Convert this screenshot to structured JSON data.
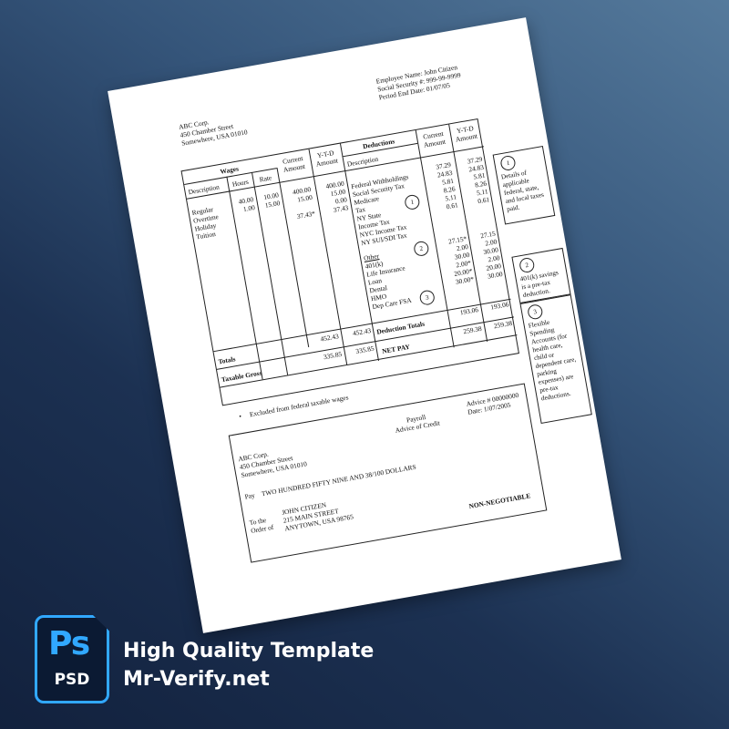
{
  "header": {
    "company": [
      "ABC Corp.",
      "450 Chamber Street",
      "Somewhere, USA 01010"
    ],
    "employee": [
      "Employee Name: John Citizen",
      "Social Security #: 999-99-9999",
      "Period End Date: 01/07/05"
    ]
  },
  "wages": {
    "title": "Wages",
    "headers": {
      "description": "Description",
      "hours": "Hours",
      "rate": "Rate",
      "current": "Current Amount",
      "ytd": "Y-T-D Amount"
    },
    "descriptions": [
      "Regular",
      "Overtime",
      "Holiday",
      "Tuition"
    ],
    "hours": [
      "40.00",
      "1.00"
    ],
    "rate": [
      "10.00",
      "15.00"
    ],
    "current": [
      "400.00",
      "15.00",
      "",
      "37.43*"
    ],
    "ytd": [
      "400.00",
      "15.00",
      "0.00",
      "37.43"
    ],
    "totals_label": "Totals",
    "totals_current": "452.43",
    "totals_ytd": "452.43",
    "taxable_label": "Taxable Gross",
    "taxable_current": "335.85",
    "taxable_ytd": "335.85"
  },
  "deductions": {
    "title": "Deductions",
    "headers": {
      "description": "Description",
      "current": "Current Amount",
      "ytd": "Y-T-D Amount"
    },
    "tax_labels": [
      "Federal Withholdings",
      "Social Security Tax",
      "Medicare",
      "Tax",
      "NY State",
      "Income Tax",
      "NYC Income Tax",
      "NY SUI/SDI Tax"
    ],
    "tax_current": [
      "37.29",
      "24.83",
      "5.81",
      "8.26",
      "5.11",
      "0.61"
    ],
    "tax_ytd": [
      "37.29",
      "24.83",
      "5.81",
      "8.26",
      "5.11",
      "0.61"
    ],
    "other_label": "Other",
    "other_labels": [
      "401(k)",
      "Life Insurance",
      "Loan",
      "Dental",
      "HMO",
      "Dep Care FSA"
    ],
    "other_current": [
      "27.15*",
      "2.00",
      "30.00",
      "2.00*",
      "20.00*",
      "30.00*"
    ],
    "other_ytd": [
      "27.15",
      "2.00",
      "30.00",
      "2.00",
      "20.00",
      "30.00"
    ],
    "totals_label": "Deduction Totals",
    "totals_current": "193.06",
    "totals_ytd": "193.06",
    "net_label": "NET PAY",
    "net_current": "259.38",
    "net_ytd": "259.38"
  },
  "markers": [
    "1",
    "2",
    "3"
  ],
  "notes": [
    {
      "num": "1",
      "text": "Details of applicable federal, state, and local taxes paid."
    },
    {
      "num": "2",
      "text": "401(k) savings is a pre-tax deduction."
    },
    {
      "num": "3",
      "text": "Flexible Spending Accounts (for health care, child or dependent care, parking expenses) are pre-tax deductions."
    }
  ],
  "footnote": "Excluded from federal taxable wages",
  "check": {
    "payroll": "Payroll",
    "advice_of_credit": "Advice of Credit",
    "advice_number": "Advice # 00000000",
    "date": "Date: 1/07/2005",
    "company": [
      "ABC Corp.",
      "450 Chamber Street",
      "Somewhere, USA 01010"
    ],
    "pay_label": "Pay",
    "pay_amount": "TWO HUNDRED FIFTY NINE AND 38/100 DOLLARS",
    "order_label": [
      "To the",
      "Order of"
    ],
    "payee": [
      "JOHN CITIZEN",
      "215 MAIN STREET",
      "ANYTOWN, USA   98765"
    ],
    "non_negotiable": "NON-NEGOTIABLE"
  },
  "branding": {
    "icon": "photoshop-psd-icon",
    "icon_text": "Ps",
    "icon_subtext": "PSD",
    "line1": "High Quality Template",
    "line2": "Mr-Verify.net",
    "accent": "#31a8ff"
  }
}
